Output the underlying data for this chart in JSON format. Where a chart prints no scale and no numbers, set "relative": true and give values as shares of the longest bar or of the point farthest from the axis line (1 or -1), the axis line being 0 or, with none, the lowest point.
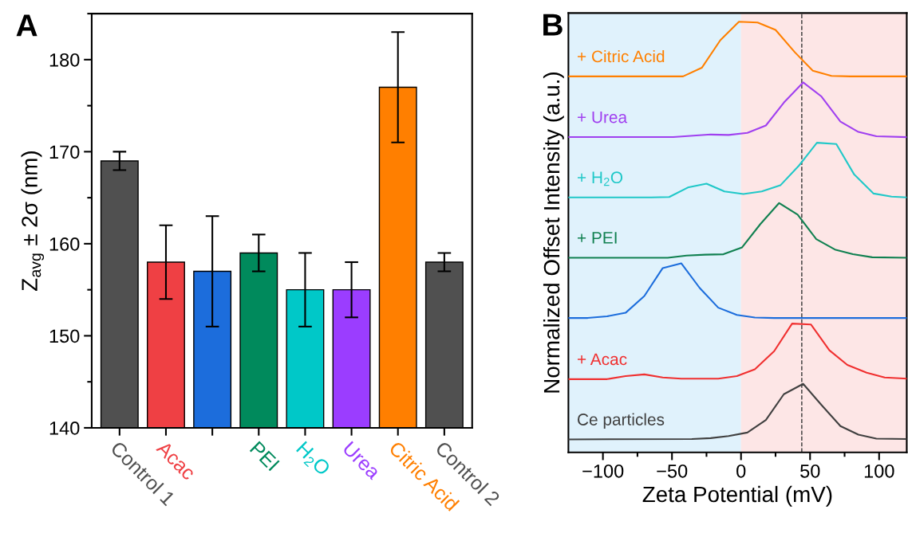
{
  "chart_data": [
    {
      "type": "bar",
      "annotations": [
        "A"
      ],
      "ylabel": "Z$_{avg}$ ± 2σ (nm)",
      "categories": [
        "Control 1",
        "Acac",
        null,
        "PEI",
        "H$_{2}$O",
        "Urea",
        "Citric Acid",
        "Control 2"
      ],
      "values": [
        169,
        158,
        157,
        159,
        155,
        155,
        177,
        158
      ],
      "errors": [
        1,
        4,
        6,
        2,
        4,
        3,
        6,
        1
      ],
      "colors": [
        "#505050",
        "#ef4044",
        "#1c6ddc",
        "#008a5c",
        "#00c8c8",
        "#9b3dff",
        "#ff7f00",
        "#505050"
      ],
      "ylim": [
        140,
        185
      ],
      "yticks": [
        140,
        {
          "value": 145,
          "label": null
        },
        150,
        {
          "value": 155,
          "label": null
        },
        160,
        {
          "value": 165,
          "label": null
        },
        170,
        {
          "value": 175,
          "label": null
        },
        180,
        {
          "value": 185,
          "label": null
        }
      ],
      "grid": false
    },
    {
      "type": "line",
      "annotations": [
        "B"
      ],
      "xlabel": "Zeta Potential (mV)",
      "ylabel": "Normalized Offset Intensity (a.u.)",
      "relative": true,
      "tick_labels": "x",
      "grid": false,
      "legend": false,
      "marker": "none",
      "line_style": "solid",
      "xlim": [
        -125,
        120
      ],
      "xticks": [
        -100,
        {
          "value": -75,
          "label": null
        },
        -50,
        {
          "value": -25,
          "label": null
        },
        0,
        {
          "value": 25,
          "label": null
        },
        50,
        {
          "value": 75,
          "label": null
        },
        100
      ],
      "bands": [
        {
          "axis": "x",
          "from": -125,
          "to": 0,
          "color": "#e0f2fc"
        },
        {
          "axis": "x",
          "from": 0,
          "to": 120,
          "color": "#fde6e6"
        }
      ],
      "ref_lines": [
        {
          "axis": "x",
          "value": 44,
          "color": "#333333",
          "line_style": "dashed"
        }
      ],
      "series": [
        {
          "name": "+ Citric Acid",
          "color": "#ff8000",
          "x": [
            -125,
            -42,
            -28.4,
            -15,
            -1.5,
            12,
            25,
            39,
            52,
            65.5,
            79,
            120
          ],
          "values": [
            0.873,
            0.873,
            0.893,
            0.957,
            1.0,
            0.998,
            0.981,
            0.929,
            0.886,
            0.874,
            0.873,
            0.873
          ]
        },
        {
          "name": "+ Urea",
          "color": "#a040f0",
          "x": [
            -125,
            -49,
            -22,
            -9,
            4.6,
            18,
            31,
            45,
            58,
            72,
            85,
            98,
            120
          ],
          "values": [
            0.732,
            0.732,
            0.738,
            0.737,
            0.742,
            0.759,
            0.812,
            0.859,
            0.827,
            0.768,
            0.744,
            0.734,
            0.732
          ]
        },
        {
          "name": "+ H$_{2}$O",
          "color": "#20c8c8",
          "x": [
            -125,
            -65,
            -52,
            -38.5,
            -25,
            -12,
            1.7,
            15,
            28.5,
            42,
            55,
            69,
            82,
            96,
            109,
            120
          ],
          "values": [
            0.592,
            0.592,
            0.593,
            0.615,
            0.624,
            0.606,
            0.6,
            0.606,
            0.62,
            0.666,
            0.719,
            0.716,
            0.645,
            0.601,
            0.594,
            0.592
          ]
        },
        {
          "name": "+ PEI",
          "color": "#108050",
          "x": [
            -125,
            -53,
            -39.5,
            -26,
            -12.7,
            0.8,
            14,
            27.6,
            41,
            54.5,
            68,
            81,
            95,
            120
          ],
          "values": [
            0.452,
            0.452,
            0.457,
            0.459,
            0.46,
            0.476,
            0.53,
            0.579,
            0.552,
            0.495,
            0.471,
            0.46,
            0.453,
            0.452
          ]
        },
        {
          "color": "#1c6ddc",
          "x": [
            -125,
            -111,
            -97,
            -83.6,
            -70,
            -56.7,
            -43.3,
            -30,
            -16.5,
            -3,
            10,
            24,
            120
          ],
          "values": [
            0.312,
            0.312,
            0.316,
            0.324,
            0.363,
            0.428,
            0.439,
            0.382,
            0.336,
            0.319,
            0.313,
            0.312,
            0.312
          ]
        },
        {
          "name": "+ Acac",
          "color": "#f03030",
          "x": [
            -125,
            -97,
            -83.6,
            -70,
            -56.7,
            -43.3,
            -16.5,
            -3,
            10,
            24,
            37,
            50.6,
            64,
            77,
            91,
            104,
            120
          ],
          "values": [
            0.17,
            0.17,
            0.177,
            0.181,
            0.174,
            0.171,
            0.171,
            0.177,
            0.193,
            0.235,
            0.299,
            0.297,
            0.237,
            0.203,
            0.185,
            0.174,
            0.171
          ]
        },
        {
          "name": "Ce particles",
          "color": "#404040",
          "x": [
            -125,
            -35.6,
            -22,
            -9,
            4.6,
            18,
            31,
            45,
            58,
            72,
            85,
            98,
            120
          ],
          "values": [
            0.03,
            0.031,
            0.033,
            0.038,
            0.046,
            0.075,
            0.135,
            0.159,
            0.111,
            0.061,
            0.041,
            0.032,
            0.031
          ]
        }
      ]
    }
  ]
}
